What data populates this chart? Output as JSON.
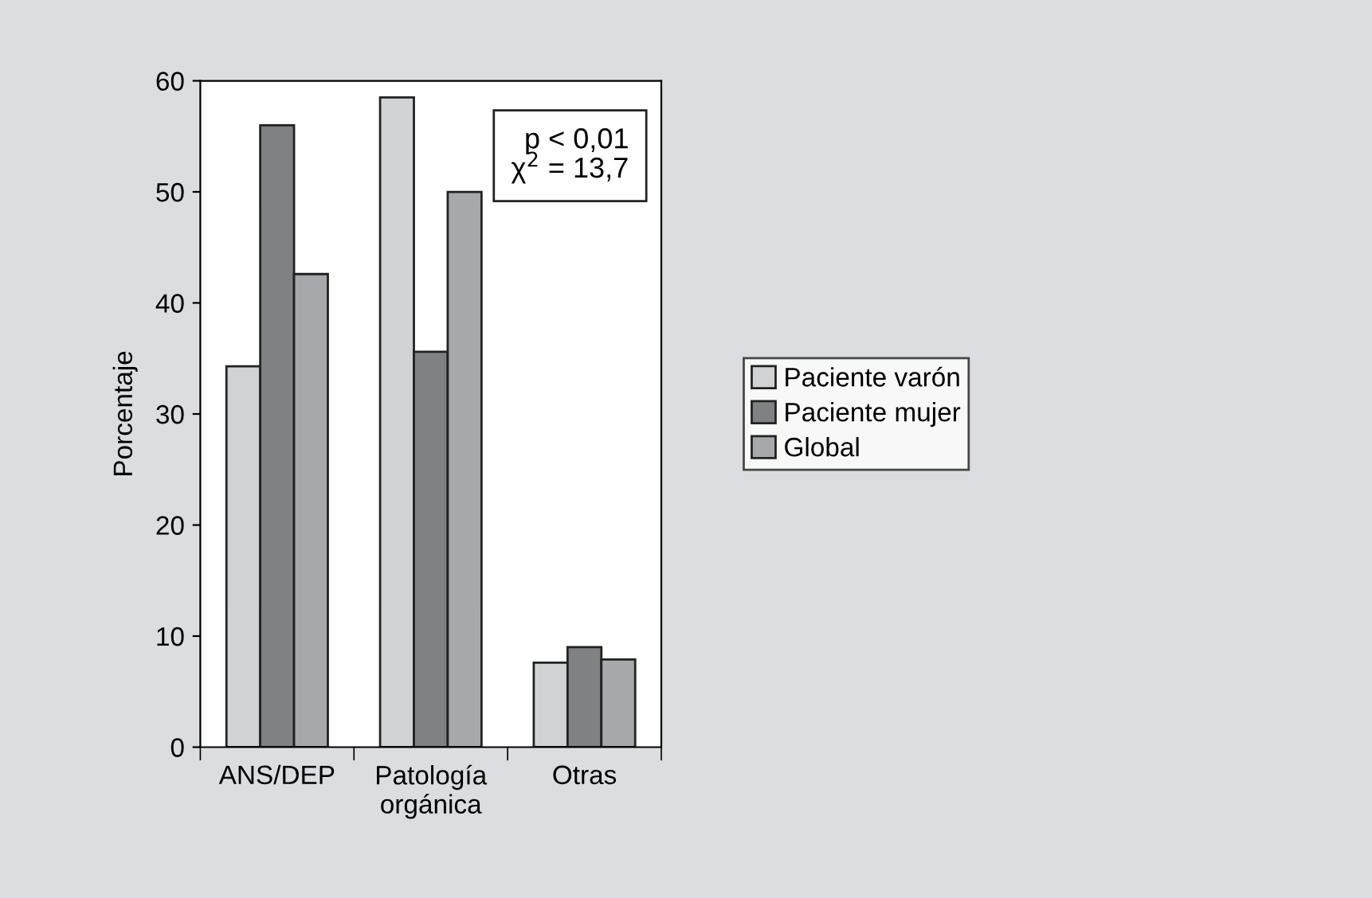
{
  "chart_data": {
    "type": "bar",
    "ylabel": "Porcentaje",
    "categories": [
      "ANS/DEP",
      "Patología\norgánica",
      "Otras"
    ],
    "series": [
      {
        "name": "Paciente varón",
        "color": "#d1d2d4",
        "values": [
          34.3,
          58.5,
          7.6
        ]
      },
      {
        "name": "Paciente mujer",
        "color": "#808184",
        "values": [
          56.0,
          35.6,
          9.0
        ]
      },
      {
        "name": "Global",
        "color": "#a7a8ab",
        "values": [
          42.6,
          50.0,
          7.9
        ]
      }
    ],
    "ylim": [
      0,
      60
    ],
    "yticks": [
      0,
      10,
      20,
      30,
      40,
      50,
      60
    ],
    "grid": false,
    "legend": "right",
    "annotations": [
      "p < 0,01\nχ$^{2}$ = 13,7"
    ]
  }
}
